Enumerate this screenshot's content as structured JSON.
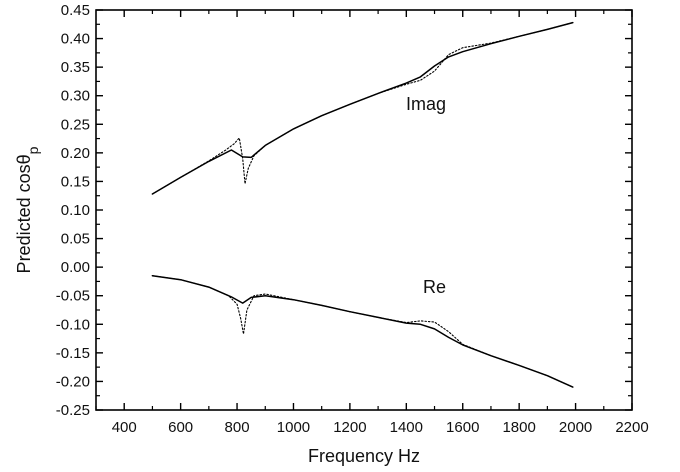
{
  "chart_data": {
    "type": "line",
    "title": "",
    "xlabel": "Frequency Hz",
    "ylabel_main": "Predicted cosθ",
    "ylabel_sub": "p",
    "xlim": [
      300,
      2200
    ],
    "ylim": [
      -0.25,
      0.45
    ],
    "x_ticks": [
      400,
      600,
      800,
      1000,
      1200,
      1400,
      1600,
      1800,
      2000,
      2200
    ],
    "y_ticks": [
      -0.25,
      -0.2,
      -0.15,
      -0.1,
      -0.05,
      0.0,
      0.05,
      0.1,
      0.15,
      0.2,
      0.25,
      0.3,
      0.35,
      0.4,
      0.45
    ],
    "y_tick_labels": [
      "-0.25",
      "-0.20",
      "-0.15",
      "-0.10",
      "-0.05",
      "0.00",
      "0.05",
      "0.10",
      "0.15",
      "0.20",
      "0.25",
      "0.30",
      "0.35",
      "0.40",
      "0.45"
    ],
    "grid": false,
    "annotations": [
      {
        "text": "Imag",
        "x": 1470,
        "y": 0.275
      },
      {
        "text": "Re",
        "x": 1500,
        "y": -0.045
      }
    ],
    "series": [
      {
        "style": "solid",
        "x": [
          500,
          600,
          700,
          780,
          820,
          850,
          900,
          1000,
          1100,
          1200,
          1300,
          1400,
          1450,
          1500,
          1550,
          1600,
          1700,
          1800,
          1900,
          1990
        ],
        "y": [
          0.128,
          0.157,
          0.185,
          0.205,
          0.193,
          0.192,
          0.213,
          0.242,
          0.265,
          0.285,
          0.304,
          0.322,
          0.333,
          0.352,
          0.368,
          0.377,
          0.391,
          0.404,
          0.416,
          0.428
        ]
      },
      {
        "style": "dotted",
        "x": [
          500,
          600,
          700,
          760,
          790,
          808,
          820,
          828,
          840,
          860,
          900,
          1000,
          1100,
          1200,
          1300,
          1400,
          1450,
          1500,
          1550,
          1600,
          1700,
          1800,
          1900,
          1990
        ],
        "y": [
          0.128,
          0.157,
          0.186,
          0.205,
          0.216,
          0.226,
          0.19,
          0.146,
          0.173,
          0.195,
          0.213,
          0.242,
          0.265,
          0.285,
          0.304,
          0.32,
          0.327,
          0.343,
          0.372,
          0.384,
          0.392,
          0.404,
          0.416,
          0.428
        ]
      },
      {
        "style": "solid",
        "x": [
          500,
          600,
          700,
          780,
          820,
          850,
          900,
          1000,
          1100,
          1200,
          1300,
          1400,
          1450,
          1500,
          1550,
          1600,
          1700,
          1800,
          1900,
          1990
        ],
        "y": [
          -0.015,
          -0.022,
          -0.035,
          -0.052,
          -0.063,
          -0.053,
          -0.05,
          -0.057,
          -0.067,
          -0.078,
          -0.088,
          -0.098,
          -0.1,
          -0.108,
          -0.123,
          -0.136,
          -0.155,
          -0.172,
          -0.19,
          -0.21
        ]
      },
      {
        "style": "dotted",
        "x": [
          500,
          600,
          700,
          770,
          800,
          813,
          823,
          835,
          860,
          900,
          1000,
          1100,
          1200,
          1300,
          1400,
          1450,
          1500,
          1550,
          1600,
          1700,
          1800,
          1900,
          1990
        ],
        "y": [
          -0.015,
          -0.022,
          -0.035,
          -0.05,
          -0.065,
          -0.09,
          -0.117,
          -0.075,
          -0.05,
          -0.047,
          -0.057,
          -0.067,
          -0.078,
          -0.088,
          -0.097,
          -0.094,
          -0.096,
          -0.113,
          -0.135,
          -0.155,
          -0.172,
          -0.19,
          -0.21
        ]
      }
    ]
  }
}
